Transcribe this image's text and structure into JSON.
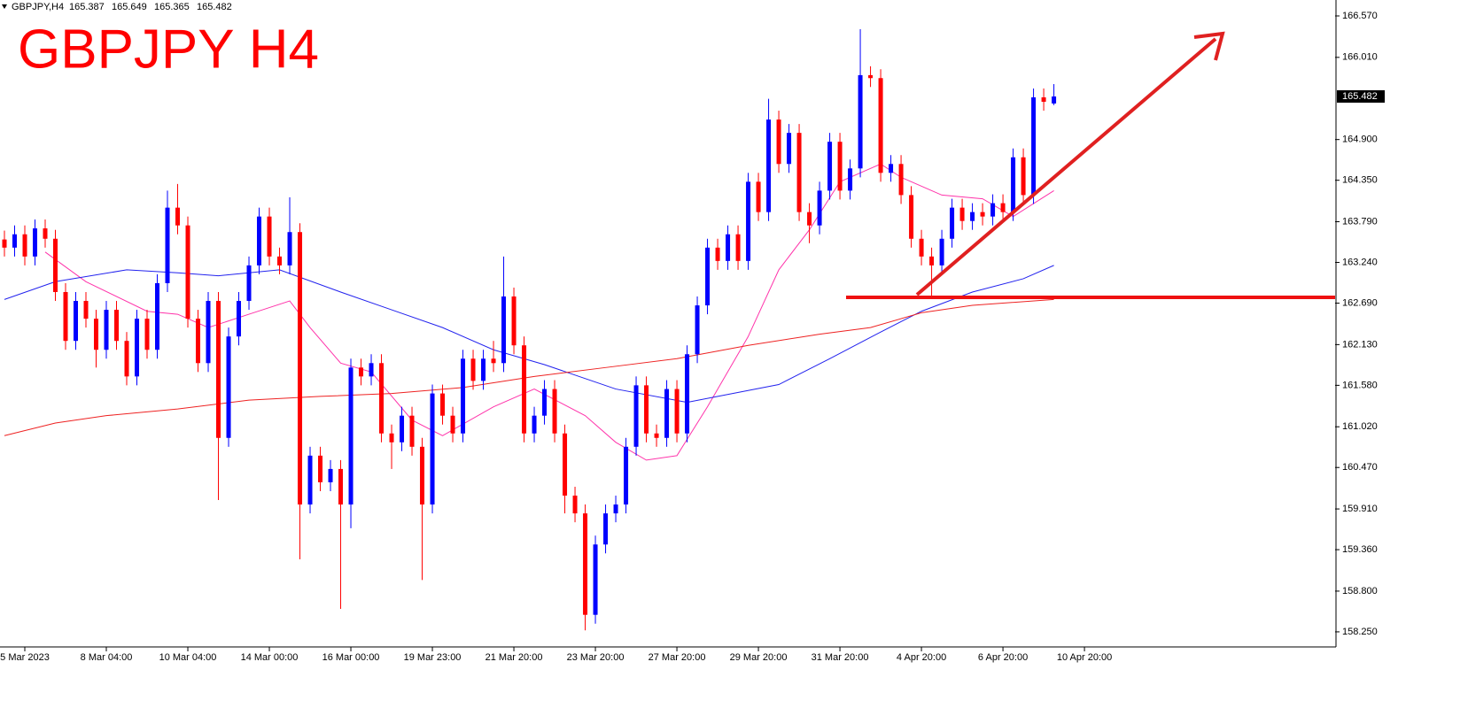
{
  "chart_data": {
    "type": "candlestick",
    "title": "GBPJPY H4",
    "symbol": "GBPJPY,H4",
    "up_color": "#0000ff",
    "down_color": "#ff0000",
    "open": [
      163.55,
      163.44,
      163.62,
      163.32,
      163.7,
      163.56,
      162.84,
      162.18,
      162.72,
      162.48,
      162.06,
      162.6,
      162.18,
      161.7,
      162.48,
      162.06,
      162.96,
      163.98,
      163.74,
      162.48,
      161.88,
      162.72,
      160.87,
      162.24,
      162.72,
      163.2,
      163.86,
      163.32,
      163.2,
      163.65,
      159.97,
      160.63,
      160.27,
      160.45,
      159.97,
      161.82,
      161.7,
      161.88,
      160.93,
      160.81,
      161.17,
      160.75,
      159.97,
      161.47,
      161.17,
      160.93,
      161.94,
      161.64,
      161.94,
      161.88,
      162.78,
      162.12,
      160.93,
      161.17,
      161.53,
      160.93,
      160.09,
      159.85,
      158.48,
      159.43,
      159.85,
      159.97,
      160.75,
      161.58,
      160.93,
      160.87,
      161.53,
      160.93,
      162.0,
      162.66,
      163.44,
      163.26,
      163.62,
      163.26,
      164.33,
      163.92,
      165.17,
      164.57,
      164.99,
      163.92,
      163.74,
      164.21,
      164.87,
      164.21,
      164.51,
      165.77,
      165.73,
      164.45,
      164.57,
      164.15,
      163.56,
      163.32,
      163.2,
      163.56,
      163.98,
      163.8,
      163.92,
      163.86,
      164.04,
      163.92,
      164.66,
      164.15,
      165.47,
      165.387
    ],
    "high": [
      163.67,
      163.74,
      163.74,
      163.82,
      163.82,
      163.68,
      162.96,
      162.84,
      162.84,
      162.6,
      162.72,
      162.72,
      162.3,
      162.6,
      162.6,
      163.08,
      164.21,
      164.3,
      163.86,
      162.6,
      162.84,
      162.84,
      162.36,
      162.84,
      163.32,
      163.98,
      163.98,
      163.44,
      164.12,
      163.77,
      160.75,
      160.75,
      160.57,
      160.57,
      161.94,
      161.94,
      162.0,
      162.0,
      161.05,
      161.29,
      161.29,
      160.87,
      161.59,
      161.59,
      161.29,
      162.06,
      162.06,
      162.06,
      162.18,
      163.32,
      162.9,
      162.24,
      161.29,
      161.65,
      161.65,
      161.05,
      160.21,
      159.97,
      159.55,
      159.97,
      160.09,
      160.87,
      161.7,
      161.7,
      161.05,
      161.65,
      161.65,
      162.12,
      162.78,
      163.56,
      163.56,
      163.74,
      163.74,
      164.45,
      164.45,
      165.45,
      165.29,
      165.11,
      165.11,
      164.04,
      164.33,
      164.99,
      164.99,
      164.63,
      166.39,
      165.89,
      165.85,
      164.69,
      164.69,
      164.27,
      163.68,
      163.44,
      163.68,
      164.1,
      164.1,
      164.04,
      164.04,
      164.16,
      164.16,
      164.78,
      164.78,
      165.59,
      165.59,
      165.649
    ],
    "low": [
      163.32,
      163.32,
      163.2,
      163.2,
      163.44,
      162.72,
      162.06,
      162.06,
      162.36,
      161.82,
      161.94,
      162.06,
      161.58,
      161.58,
      161.94,
      161.94,
      162.84,
      163.62,
      162.36,
      161.76,
      161.76,
      160.03,
      160.75,
      162.12,
      162.6,
      163.08,
      163.2,
      163.08,
      163.08,
      159.23,
      159.85,
      160.15,
      160.15,
      158.56,
      159.65,
      161.58,
      161.58,
      160.81,
      160.45,
      160.69,
      160.63,
      158.95,
      159.85,
      161.05,
      160.81,
      160.81,
      161.52,
      161.52,
      161.76,
      161.76,
      162.0,
      160.81,
      160.81,
      161.05,
      160.81,
      159.85,
      159.73,
      158.27,
      158.36,
      159.31,
      159.73,
      159.85,
      160.63,
      160.81,
      160.75,
      160.75,
      160.81,
      160.81,
      161.88,
      162.54,
      163.14,
      163.14,
      163.14,
      163.14,
      163.8,
      163.8,
      164.45,
      164.45,
      163.8,
      163.5,
      163.62,
      164.09,
      164.09,
      164.09,
      164.39,
      165.61,
      164.33,
      164.33,
      164.03,
      163.44,
      163.2,
      162.78,
      163.08,
      163.44,
      163.68,
      163.68,
      163.74,
      163.74,
      163.8,
      163.8,
      164.03,
      164.03,
      165.29,
      165.365
    ],
    "close": [
      163.44,
      163.62,
      163.32,
      163.7,
      163.56,
      162.84,
      162.18,
      162.72,
      162.48,
      162.06,
      162.6,
      162.18,
      161.7,
      162.48,
      162.06,
      162.96,
      163.98,
      163.74,
      162.48,
      161.88,
      162.72,
      160.87,
      162.24,
      162.72,
      163.2,
      163.86,
      163.32,
      163.2,
      163.65,
      159.97,
      160.63,
      160.27,
      160.45,
      159.97,
      161.82,
      161.7,
      161.88,
      160.93,
      160.81,
      161.17,
      160.75,
      159.97,
      161.47,
      161.17,
      160.93,
      161.94,
      161.64,
      161.94,
      161.88,
      162.78,
      162.12,
      160.93,
      161.17,
      161.53,
      160.93,
      160.09,
      159.85,
      158.48,
      159.43,
      159.85,
      159.97,
      160.75,
      161.58,
      160.93,
      160.87,
      161.53,
      160.93,
      162.0,
      162.66,
      163.44,
      163.26,
      163.62,
      163.26,
      164.33,
      163.92,
      165.17,
      164.57,
      164.99,
      163.92,
      163.74,
      164.21,
      164.87,
      164.21,
      164.51,
      165.77,
      165.73,
      164.45,
      164.57,
      164.15,
      163.56,
      163.32,
      163.2,
      163.56,
      163.98,
      163.8,
      163.92,
      163.86,
      164.04,
      163.92,
      164.66,
      164.15,
      165.47,
      165.41,
      165.482
    ],
    "overlays": [
      {
        "color": "#ff33aa",
        "x": [
          4,
          8,
          14,
          17,
          20,
          24,
          28,
          30,
          33,
          36,
          40,
          43,
          48,
          52,
          57,
          60,
          63,
          66,
          69,
          73,
          76,
          79,
          82,
          86,
          88,
          92,
          96,
          99,
          103
        ],
        "values": [
          163.38,
          162.98,
          162.58,
          162.54,
          162.36,
          162.54,
          162.72,
          162.36,
          161.88,
          161.76,
          161.11,
          160.9,
          161.29,
          161.53,
          161.17,
          160.81,
          160.57,
          160.63,
          161.29,
          162.24,
          163.14,
          163.68,
          164.33,
          164.57,
          164.39,
          164.15,
          164.1,
          163.86,
          164.21
        ]
      },
      {
        "color": "#2222ee",
        "x": [
          0,
          5,
          12,
          17,
          21,
          27,
          33,
          38,
          43,
          48,
          53,
          60,
          67,
          76,
          81,
          86,
          90,
          95,
          100,
          103
        ],
        "values": [
          162.74,
          162.98,
          163.14,
          163.1,
          163.06,
          163.14,
          162.84,
          162.6,
          162.36,
          162.06,
          161.86,
          161.53,
          161.35,
          161.59,
          161.94,
          162.3,
          162.58,
          162.84,
          163.02,
          163.2
        ]
      },
      {
        "color": "#ee2222",
        "x": [
          0,
          5,
          10,
          17,
          24,
          31,
          38,
          45,
          52,
          59,
          66,
          73,
          80,
          85,
          90,
          95,
          103
        ],
        "values": [
          160.9,
          161.07,
          161.17,
          161.26,
          161.38,
          161.43,
          161.47,
          161.55,
          161.7,
          161.82,
          161.94,
          162.12,
          162.27,
          162.36,
          162.56,
          162.66,
          162.74
        ]
      }
    ],
    "xlim": [
      -0.435,
      130.6
    ],
    "xticks": [
      {
        "value": 2,
        "label": "5 Mar 2023"
      },
      {
        "value": 10,
        "label": "8 Mar 04:00"
      },
      {
        "value": 18,
        "label": "10 Mar 04:00"
      },
      {
        "value": 26,
        "label": "14 Mar 00:00"
      },
      {
        "value": 34,
        "label": "16 Mar 00:00"
      },
      {
        "value": 42,
        "label": "19 Mar 23:00"
      },
      {
        "value": 50,
        "label": "21 Mar 20:00"
      },
      {
        "value": 58,
        "label": "23 Mar 20:00"
      },
      {
        "value": 66,
        "label": "27 Mar 20:00"
      },
      {
        "value": 74,
        "label": "29 Mar 20:00"
      },
      {
        "value": 82,
        "label": "31 Mar 20:00"
      },
      {
        "value": 90,
        "label": "4 Apr 20:00"
      },
      {
        "value": 98,
        "label": "6 Apr 20:00"
      },
      {
        "value": 106,
        "label": "10 Apr 20:00"
      }
    ],
    "ylim": [
      158.046,
      166.785
    ],
    "yticks": [
      {
        "value": 166.57,
        "label": "166.570"
      },
      {
        "value": 166.01,
        "label": "166.010"
      },
      {
        "value": 164.9,
        "label": "164.900"
      },
      {
        "value": 164.35,
        "label": "164.350"
      },
      {
        "value": 163.79,
        "label": "163.790"
      },
      {
        "value": 163.24,
        "label": "163.240"
      },
      {
        "value": 162.69,
        "label": "162.690"
      },
      {
        "value": 162.13,
        "label": "162.130"
      },
      {
        "value": 161.58,
        "label": "161.580"
      },
      {
        "value": 161.02,
        "label": "161.020"
      },
      {
        "value": 160.47,
        "label": "160.470"
      },
      {
        "value": 159.91,
        "label": "159.910"
      },
      {
        "value": 159.36,
        "label": "159.360"
      },
      {
        "value": 158.8,
        "label": "158.800"
      },
      {
        "value": 158.25,
        "label": "158.250"
      }
    ]
  }
}
